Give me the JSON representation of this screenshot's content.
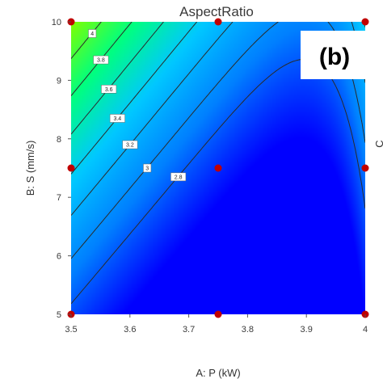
{
  "chart_data": {
    "type": "contour",
    "title": "AspectRatio",
    "panel_label": "(b)",
    "xlabel": "A: P (kW)",
    "ylabel": "B: S (mm/s)",
    "right_axis_label_fragment": "C",
    "xlim": [
      3.5,
      4.0
    ],
    "ylim": [
      5,
      10
    ],
    "xticks": [
      "3.5",
      "3.6",
      "3.7",
      "3.8",
      "3.9",
      "4"
    ],
    "yticks": [
      "5",
      "6",
      "7",
      "8",
      "9",
      "10"
    ],
    "colormap": [
      "#0000ff",
      "#0080ff",
      "#00c8ff",
      "#00ff80",
      "#7fff00"
    ],
    "contour_levels": [
      {
        "label": "4",
        "value": 4.0
      },
      {
        "label": "3.8",
        "value": 3.8
      },
      {
        "label": "3.6",
        "value": 3.6
      },
      {
        "label": "3.4",
        "value": 3.4
      },
      {
        "label": "3.2",
        "value": 3.2
      },
      {
        "label": "3",
        "value": 3.0
      },
      {
        "label": "2.8",
        "value": 2.8
      },
      {
        "label": "3",
        "value": 3.0
      }
    ],
    "design_points": [
      {
        "x": 3.5,
        "y": 10
      },
      {
        "x": 3.75,
        "y": 10
      },
      {
        "x": 4.0,
        "y": 10
      },
      {
        "x": 3.5,
        "y": 7.5
      },
      {
        "x": 3.75,
        "y": 7.5
      },
      {
        "x": 4.0,
        "y": 7.5
      },
      {
        "x": 3.5,
        "y": 5
      },
      {
        "x": 3.75,
        "y": 5
      },
      {
        "x": 4.0,
        "y": 5
      }
    ],
    "point_color": "#c00000"
  }
}
